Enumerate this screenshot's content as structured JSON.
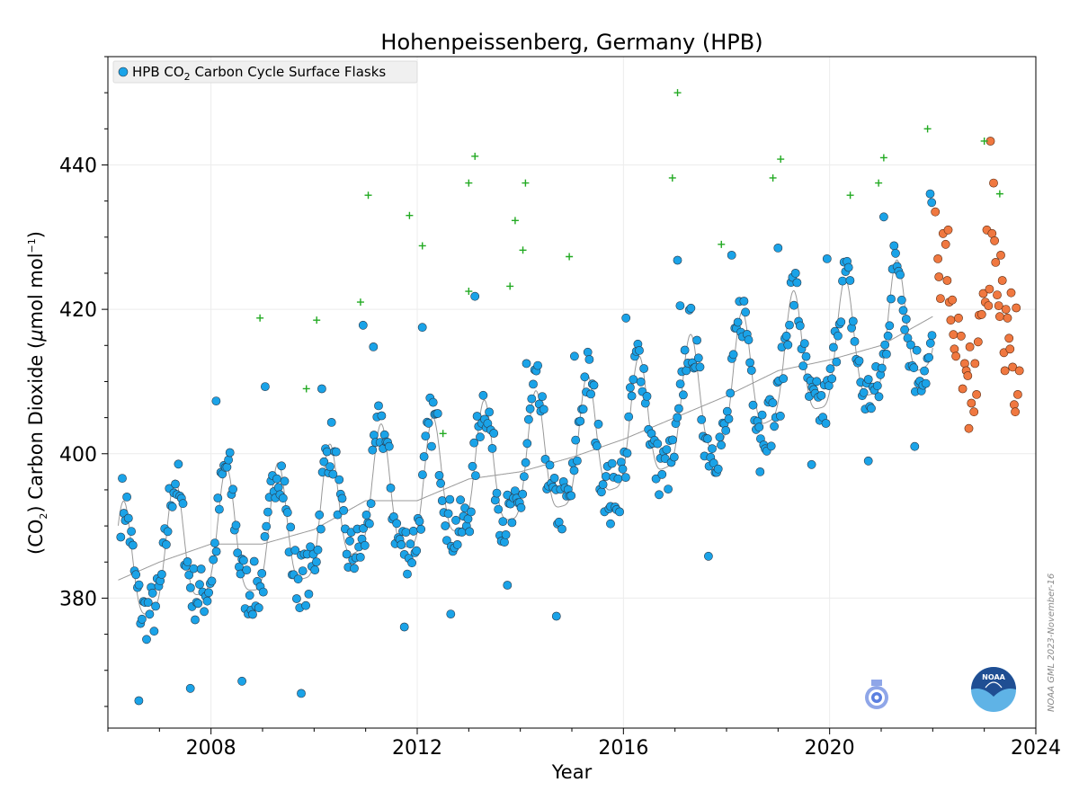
{
  "chart_data": {
    "type": "scatter",
    "title": "Hohenpeissenberg, Germany (HPB)",
    "xlabel": "Year",
    "ylabel_parts": [
      "(CO",
      "2",
      ") Carbon Dioxide (",
      "μ",
      "mol mol",
      "−1",
      ")"
    ],
    "xlim": [
      2006.0,
      2024.0
    ],
    "ylim": [
      362.0,
      455.0
    ],
    "x_ticks": [
      2008,
      2012,
      2016,
      2020,
      2024
    ],
    "y_ticks": [
      380,
      400,
      420,
      440
    ],
    "grid": true,
    "legend": {
      "placement": "top-left",
      "label_parts": [
        "HPB CO",
        "2",
        " Carbon Cycle Surface Flasks"
      ]
    },
    "credit": "NOAA GML 2023-November-16",
    "logos": [
      "wmo-logo",
      "noaa-logo"
    ],
    "colors": {
      "flask": "#1aa3e8",
      "preliminary": "#f07840",
      "outlier": "#22aa22",
      "fit": "#999999",
      "edge": "#2a3a4a"
    },
    "trend": {
      "x": [
        2006.2,
        2007.0,
        2008.0,
        2009.0,
        2010.0,
        2011.0,
        2012.0,
        2013.0,
        2014.0,
        2015.0,
        2016.0,
        2017.0,
        2018.0,
        2019.0,
        2020.0,
        2021.0,
        2022.0
      ],
      "y": [
        382.5,
        385.0,
        387.5,
        387.5,
        389.5,
        393.5,
        393.5,
        396.5,
        397.5,
        399.5,
        402.0,
        405.0,
        408.0,
        411.5,
        413.0,
        415.0,
        419.0
      ]
    },
    "seasonal_amplitude": 8.5,
    "outliers": [
      {
        "x": 2008.95,
        "y": 418.8
      },
      {
        "x": 2009.85,
        "y": 409.0
      },
      {
        "x": 2010.05,
        "y": 418.5
      },
      {
        "x": 2010.9,
        "y": 421.0
      },
      {
        "x": 2011.05,
        "y": 435.8
      },
      {
        "x": 2011.85,
        "y": 433.0
      },
      {
        "x": 2012.1,
        "y": 428.8
      },
      {
        "x": 2012.5,
        "y": 402.8
      },
      {
        "x": 2013.0,
        "y": 437.5
      },
      {
        "x": 2013.12,
        "y": 441.2
      },
      {
        "x": 2013.0,
        "y": 422.5
      },
      {
        "x": 2013.8,
        "y": 423.2
      },
      {
        "x": 2013.9,
        "y": 432.3
      },
      {
        "x": 2014.05,
        "y": 428.2
      },
      {
        "x": 2014.1,
        "y": 437.5
      },
      {
        "x": 2014.95,
        "y": 427.3
      },
      {
        "x": 2016.95,
        "y": 438.2
      },
      {
        "x": 2017.05,
        "y": 450.0
      },
      {
        "x": 2017.9,
        "y": 429.0
      },
      {
        "x": 2018.9,
        "y": 438.2
      },
      {
        "x": 2019.05,
        "y": 440.8
      },
      {
        "x": 2020.4,
        "y": 435.8
      },
      {
        "x": 2020.95,
        "y": 437.5
      },
      {
        "x": 2021.05,
        "y": 441.0
      },
      {
        "x": 2021.9,
        "y": 445.0
      },
      {
        "x": 2023.0,
        "y": 443.3
      },
      {
        "x": 2023.3,
        "y": 436.0
      }
    ],
    "preliminary": [
      {
        "x": 2022.05,
        "y": 433.5
      },
      {
        "x": 2022.1,
        "y": 427.0
      },
      {
        "x": 2022.12,
        "y": 424.5
      },
      {
        "x": 2022.15,
        "y": 421.5
      },
      {
        "x": 2022.2,
        "y": 430.5
      },
      {
        "x": 2022.25,
        "y": 429.0
      },
      {
        "x": 2022.28,
        "y": 424.0
      },
      {
        "x": 2022.3,
        "y": 431.0
      },
      {
        "x": 2022.32,
        "y": 421.0
      },
      {
        "x": 2022.35,
        "y": 418.5
      },
      {
        "x": 2022.38,
        "y": 421.3
      },
      {
        "x": 2022.4,
        "y": 416.5
      },
      {
        "x": 2022.42,
        "y": 414.5
      },
      {
        "x": 2022.45,
        "y": 413.5
      },
      {
        "x": 2022.5,
        "y": 418.8
      },
      {
        "x": 2022.55,
        "y": 416.3
      },
      {
        "x": 2022.58,
        "y": 409.0
      },
      {
        "x": 2022.62,
        "y": 412.5
      },
      {
        "x": 2022.65,
        "y": 411.5
      },
      {
        "x": 2022.68,
        "y": 410.8
      },
      {
        "x": 2022.7,
        "y": 403.5
      },
      {
        "x": 2022.72,
        "y": 414.8
      },
      {
        "x": 2022.75,
        "y": 407.0
      },
      {
        "x": 2022.8,
        "y": 405.8
      },
      {
        "x": 2022.82,
        "y": 412.5
      },
      {
        "x": 2022.85,
        "y": 408.2
      },
      {
        "x": 2022.88,
        "y": 415.5
      },
      {
        "x": 2022.9,
        "y": 419.2
      },
      {
        "x": 2022.95,
        "y": 419.3
      },
      {
        "x": 2022.98,
        "y": 422.2
      },
      {
        "x": 2023.02,
        "y": 421.0
      },
      {
        "x": 2023.05,
        "y": 431.0
      },
      {
        "x": 2023.08,
        "y": 420.5
      },
      {
        "x": 2023.1,
        "y": 422.8
      },
      {
        "x": 2023.12,
        "y": 443.3
      },
      {
        "x": 2023.15,
        "y": 430.5
      },
      {
        "x": 2023.18,
        "y": 437.5
      },
      {
        "x": 2023.2,
        "y": 429.5
      },
      {
        "x": 2023.22,
        "y": 426.5
      },
      {
        "x": 2023.25,
        "y": 422.0
      },
      {
        "x": 2023.28,
        "y": 420.5
      },
      {
        "x": 2023.3,
        "y": 419.0
      },
      {
        "x": 2023.32,
        "y": 427.5
      },
      {
        "x": 2023.35,
        "y": 424.0
      },
      {
        "x": 2023.38,
        "y": 414.0
      },
      {
        "x": 2023.4,
        "y": 411.5
      },
      {
        "x": 2023.42,
        "y": 420.0
      },
      {
        "x": 2023.45,
        "y": 418.8
      },
      {
        "x": 2023.48,
        "y": 416.0
      },
      {
        "x": 2023.5,
        "y": 414.5
      },
      {
        "x": 2023.52,
        "y": 422.3
      },
      {
        "x": 2023.55,
        "y": 412.0
      },
      {
        "x": 2023.58,
        "y": 406.8
      },
      {
        "x": 2023.6,
        "y": 405.8
      },
      {
        "x": 2023.62,
        "y": 420.2
      },
      {
        "x": 2023.65,
        "y": 408.2
      },
      {
        "x": 2023.68,
        "y": 411.5
      }
    ],
    "flask_extremes": [
      {
        "x": 2006.6,
        "y": 365.8
      },
      {
        "x": 2007.6,
        "y": 367.5
      },
      {
        "x": 2008.6,
        "y": 368.5
      },
      {
        "x": 2009.75,
        "y": 366.8
      },
      {
        "x": 2008.1,
        "y": 407.3
      },
      {
        "x": 2009.05,
        "y": 409.3
      },
      {
        "x": 2010.15,
        "y": 409.0
      },
      {
        "x": 2010.95,
        "y": 417.8
      },
      {
        "x": 2011.15,
        "y": 414.8
      },
      {
        "x": 2012.1,
        "y": 417.5
      },
      {
        "x": 2013.12,
        "y": 421.8
      },
      {
        "x": 2014.12,
        "y": 412.5
      },
      {
        "x": 2015.05,
        "y": 413.5
      },
      {
        "x": 2016.05,
        "y": 418.8
      },
      {
        "x": 2017.1,
        "y": 420.5
      },
      {
        "x": 2017.05,
        "y": 426.8
      },
      {
        "x": 2018.1,
        "y": 427.5
      },
      {
        "x": 2019.0,
        "y": 428.5
      },
      {
        "x": 2019.95,
        "y": 427.0
      },
      {
        "x": 2021.05,
        "y": 432.8
      },
      {
        "x": 2021.95,
        "y": 436.0
      },
      {
        "x": 2021.98,
        "y": 434.8
      },
      {
        "x": 2015.75,
        "y": 390.3
      },
      {
        "x": 2014.7,
        "y": 377.5
      },
      {
        "x": 2012.65,
        "y": 377.8
      },
      {
        "x": 2013.75,
        "y": 381.8
      },
      {
        "x": 2011.75,
        "y": 376.0
      },
      {
        "x": 2017.65,
        "y": 385.8
      },
      {
        "x": 2018.65,
        "y": 397.5
      },
      {
        "x": 2019.65,
        "y": 398.5
      },
      {
        "x": 2020.75,
        "y": 399.0
      },
      {
        "x": 2021.65,
        "y": 401.0
      }
    ]
  }
}
